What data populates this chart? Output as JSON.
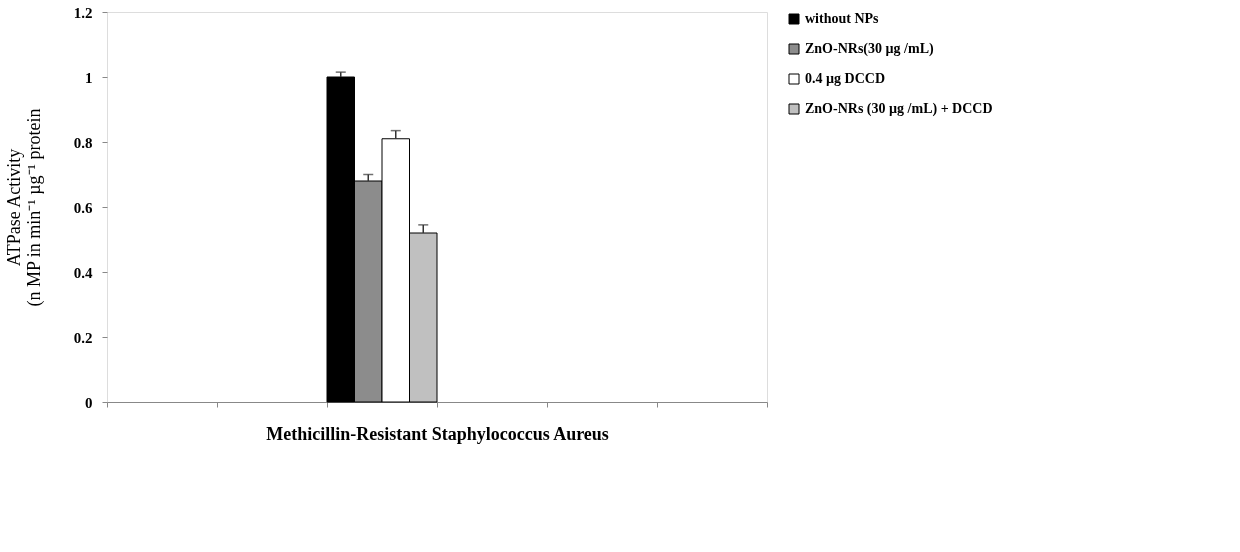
{
  "chart_data": {
    "type": "bar",
    "xlabel": "Methicillin-Resistant Staphylococcus Aureus",
    "ylabel": "ATPase Activity\n(n MP in  min⁻¹ µg⁻¹ protein",
    "categories": [
      null,
      null,
      null,
      null,
      null,
      null
    ],
    "series": [
      {
        "name": "without NPs",
        "color": "#000000",
        "values": [
          null,
          null,
          1.0,
          null,
          null,
          null
        ],
        "errors": [
          null,
          null,
          [
            1.0,
            1.015
          ],
          null,
          null,
          null
        ]
      },
      {
        "name": "ZnO-NRs(30 µg /mL)",
        "color": "#8c8c8c",
        "values": [
          null,
          null,
          0.68,
          null,
          null,
          null
        ],
        "errors": [
          null,
          null,
          [
            0.68,
            0.7
          ],
          null,
          null,
          null
        ]
      },
      {
        "name": " 0.4 µg DCCD",
        "color": "#ffffff",
        "values": [
          null,
          null,
          0.81,
          null,
          null,
          null
        ],
        "errors": [
          null,
          null,
          [
            0.81,
            0.835
          ],
          null,
          null,
          null
        ]
      },
      {
        "name": "ZnO-NRs (30 µg /mL) + DCCD",
        "color": "#c0c0c0",
        "values": [
          null,
          null,
          0.52,
          null,
          null,
          null
        ],
        "errors": [
          null,
          null,
          [
            0.52,
            0.545
          ],
          null,
          null,
          null
        ]
      }
    ],
    "ylim": [
      0,
      1.2
    ],
    "yticks": [
      0,
      0.2,
      0.4,
      0.6,
      0.8,
      1,
      1.2
    ],
    "grid": false,
    "legend": "top right",
    "tick_labels": "y"
  }
}
